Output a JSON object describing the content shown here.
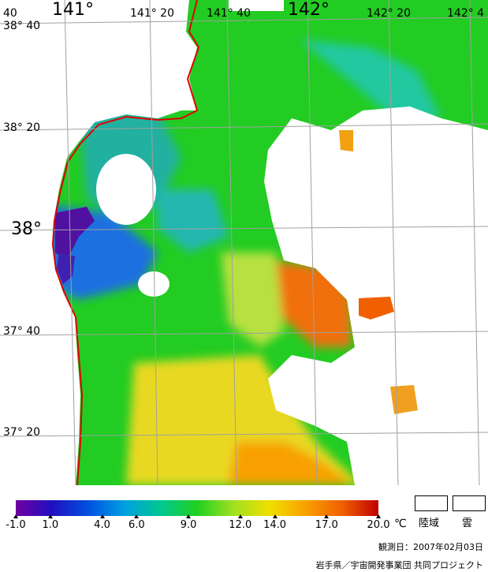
{
  "map": {
    "lon_labels": [
      {
        "text": "141°",
        "size": "big"
      },
      {
        "text": "141° 20",
        "size": "small"
      },
      {
        "text": "141° 40",
        "size": "small"
      },
      {
        "text": "142°",
        "size": "big"
      },
      {
        "text": "142° 20",
        "size": "small"
      },
      {
        "text": "142° 4",
        "size": "small"
      },
      {
        "text": "40",
        "size": "small"
      }
    ],
    "lat_labels": [
      {
        "text": "38° 40",
        "size": "small"
      },
      {
        "text": "38° 20",
        "size": "small"
      },
      {
        "text": "38°",
        "size": "big"
      },
      {
        "text": "37° 40",
        "size": "small"
      },
      {
        "text": "37° 20",
        "size": "small"
      }
    ],
    "coast_color": "#e00000",
    "grid_color": "#a0a0a0"
  },
  "legend": {
    "ticks": [
      "-1.0",
      "1.0",
      "4.0",
      "6.0",
      "9.0",
      "12.0",
      "14.0",
      "17.0",
      "20.0"
    ],
    "tick_values": [
      -1,
      1,
      4,
      6,
      9,
      12,
      14,
      17,
      20
    ],
    "range": [
      -1,
      20
    ],
    "unit": "℃",
    "land_label": "陸域",
    "cloud_label": "雲",
    "colors": [
      "#7000a0",
      "#2010c0",
      "#0050e0",
      "#00a0e0",
      "#00c890",
      "#20d020",
      "#a0e020",
      "#f0e000",
      "#f8a000",
      "#f06000",
      "#c00000"
    ]
  },
  "footer": {
    "obs_date": "観測日：2007年02月03日",
    "credit": "岩手県／宇宙開発事業団 共同プロジェクト"
  }
}
